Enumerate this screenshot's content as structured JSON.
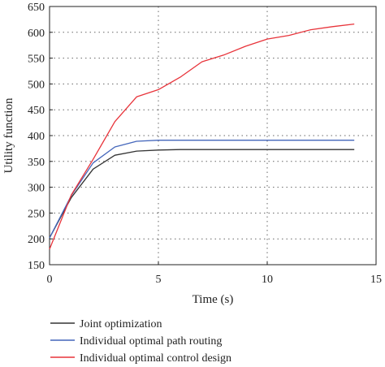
{
  "chart_data": {
    "type": "line",
    "title": "",
    "xlabel": "Time (s)",
    "ylabel": "Utility function",
    "xlim": [
      0,
      15
    ],
    "ylim": [
      150,
      650
    ],
    "xticks": [
      0,
      5,
      10,
      15
    ],
    "yticks": [
      150,
      200,
      250,
      300,
      350,
      400,
      450,
      500,
      550,
      600,
      650
    ],
    "grid": "dotted",
    "legend_position": "bottom",
    "series": [
      {
        "name": "Joint optimization",
        "color": "#333333",
        "x": [
          0,
          1,
          2,
          3,
          4,
          5,
          6,
          7,
          8,
          9,
          10,
          11,
          12,
          13,
          14
        ],
        "y": [
          202,
          280,
          335,
          362,
          370,
          372,
          373,
          373,
          373,
          373,
          373,
          373,
          373,
          373,
          373
        ]
      },
      {
        "name": "Individual optimal path routing",
        "color": "#4466bb",
        "x": [
          0,
          1,
          2,
          3,
          4,
          5,
          6,
          7,
          8,
          9,
          10,
          11,
          12,
          13,
          14
        ],
        "y": [
          202,
          284,
          347,
          378,
          389,
          391,
          391,
          391,
          391,
          391,
          391,
          391,
          391,
          391,
          391
        ]
      },
      {
        "name": "Individual optimal control design",
        "color": "#e8333a",
        "x": [
          0,
          1,
          2,
          3,
          4,
          5,
          6,
          7,
          8,
          9,
          10,
          11,
          12,
          13,
          14
        ],
        "y": [
          180,
          285,
          354,
          427,
          475,
          489,
          513,
          543,
          556,
          573,
          587,
          594,
          605,
          611,
          616
        ]
      }
    ]
  }
}
